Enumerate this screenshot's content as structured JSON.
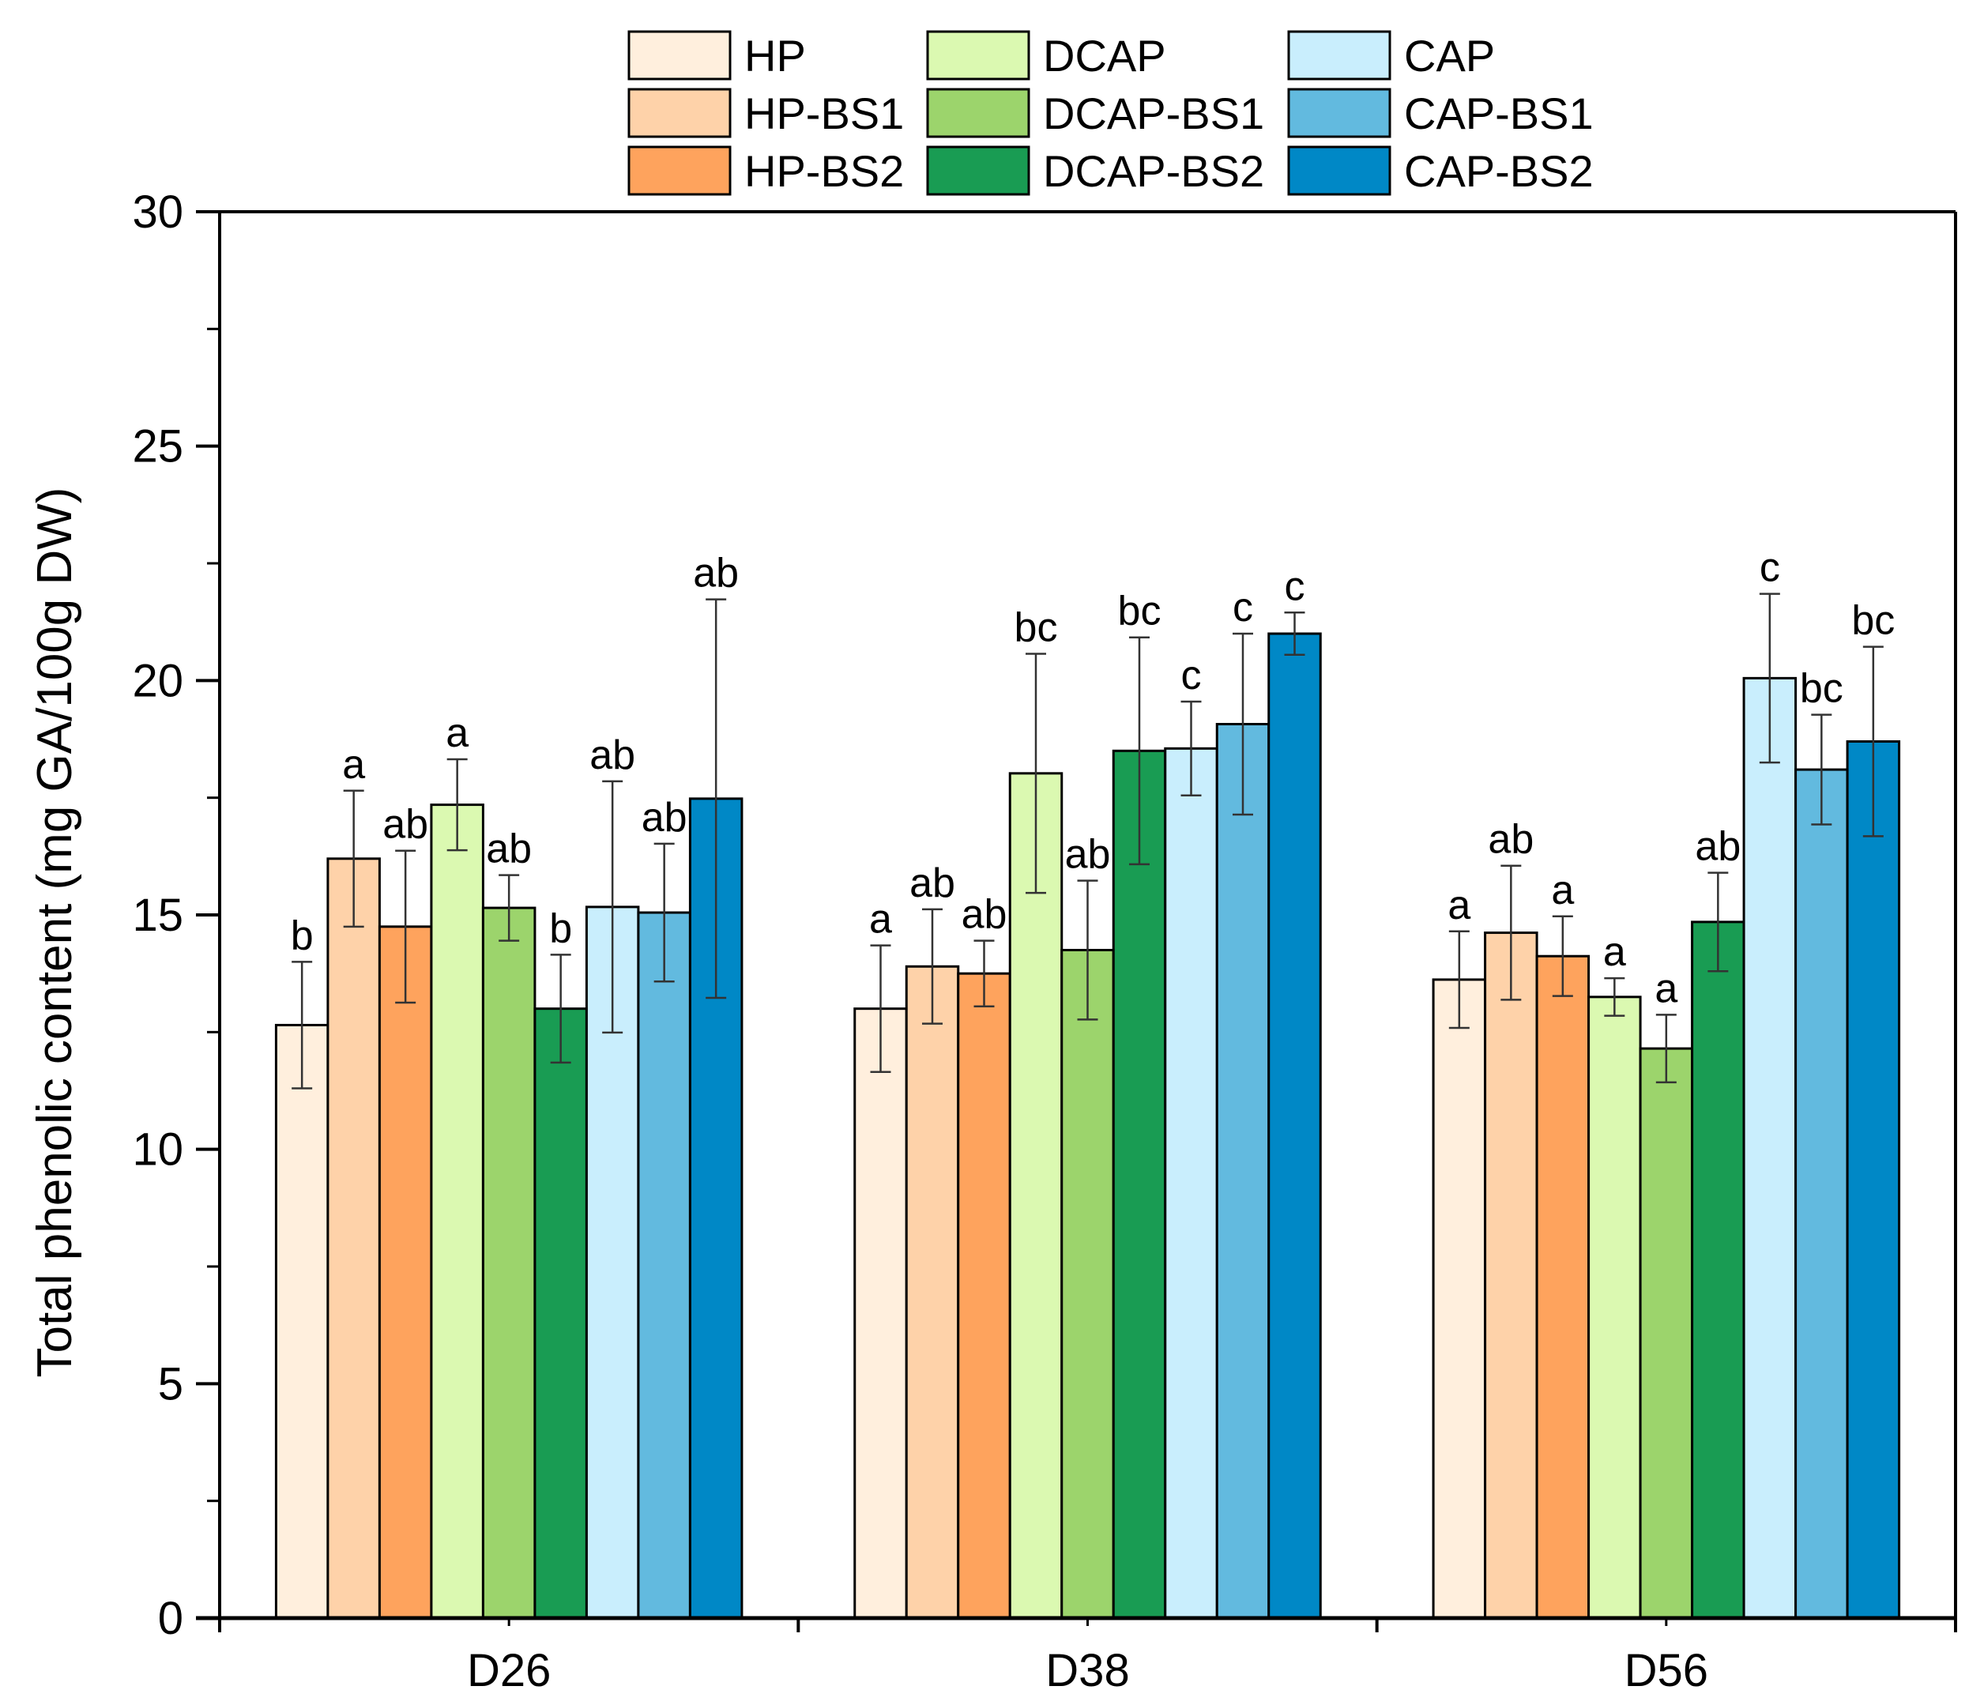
{
  "chart_data": {
    "type": "bar",
    "title": "",
    "xlabel": "",
    "ylabel": "Total phenolic content (mg GA/100g DW)",
    "ylim": [
      0,
      30
    ],
    "yticks": [
      0,
      5,
      10,
      15,
      20,
      25,
      30
    ],
    "yticks_labels": [
      "0",
      "5",
      "10",
      "15",
      "20",
      "25",
      "30"
    ],
    "categories": [
      "D26",
      "D38",
      "D56"
    ],
    "legend_position": "top-center",
    "series": [
      {
        "name": "HP",
        "color": "#FFEFDD",
        "values": [
          12.65,
          13.0,
          13.62
        ],
        "errors": [
          1.35,
          1.35,
          1.03
        ],
        "letters": [
          "b",
          "a",
          "a"
        ]
      },
      {
        "name": "HP-BS1",
        "color": "#FED2A9",
        "values": [
          16.2,
          13.9,
          14.62
        ],
        "errors": [
          1.45,
          1.22,
          1.43
        ],
        "letters": [
          "a",
          "ab",
          "ab"
        ]
      },
      {
        "name": "HP-BS2",
        "color": "#FEA35D",
        "values": [
          14.75,
          13.75,
          14.12
        ],
        "errors": [
          1.62,
          0.7,
          0.85
        ],
        "letters": [
          "ab",
          "ab",
          "a"
        ]
      },
      {
        "name": "DCAP",
        "color": "#DBF9B1",
        "values": [
          17.35,
          18.02,
          13.25
        ],
        "errors": [
          0.97,
          2.55,
          0.4
        ],
        "letters": [
          "a",
          "bc",
          "a"
        ]
      },
      {
        "name": "DCAP-BS1",
        "color": "#9CD46C",
        "values": [
          15.15,
          14.25,
          12.15
        ],
        "errors": [
          0.7,
          1.48,
          0.72
        ],
        "letters": [
          "ab",
          "ab",
          "a"
        ]
      },
      {
        "name": "DCAP-BS2",
        "color": "#199C53",
        "values": [
          13.0,
          18.5,
          14.85
        ],
        "errors": [
          1.15,
          2.42,
          1.05
        ],
        "letters": [
          "b",
          "bc",
          "ab"
        ]
      },
      {
        "name": "CAP",
        "color": "#C9EEFD",
        "values": [
          15.17,
          18.55,
          20.05
        ],
        "errors": [
          2.68,
          1.0,
          1.8
        ],
        "letters": [
          "ab",
          "c",
          "c"
        ]
      },
      {
        "name": "CAP-BS1",
        "color": "#62BADF",
        "values": [
          15.05,
          19.07,
          18.1
        ],
        "errors": [
          1.47,
          1.93,
          1.17
        ],
        "letters": [
          "ab",
          "c",
          "bc"
        ]
      },
      {
        "name": "CAP-BS2",
        "color": "#0088C6",
        "values": [
          17.48,
          21.0,
          18.7
        ],
        "errors": [
          4.25,
          0.45,
          2.02
        ],
        "letters": [
          "ab",
          "c",
          "bc"
        ]
      }
    ]
  }
}
